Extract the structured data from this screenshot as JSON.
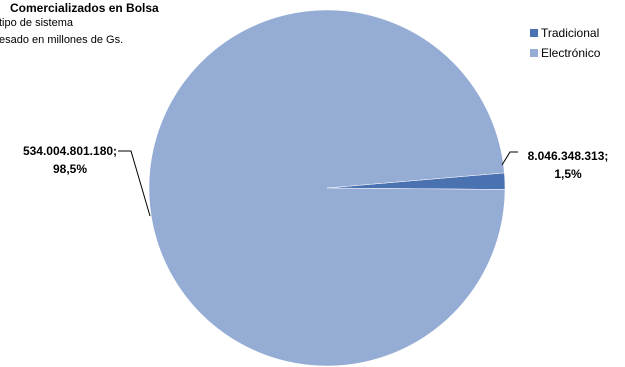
{
  "chart_data": {
    "type": "pie",
    "title": "Comercializados  en Bolsa",
    "subtitle_lines": [
      "tipo de sistema",
      "esado en millones de Gs."
    ],
    "series": [
      {
        "name": "Tradicional",
        "value": 8046348313,
        "value_label": "8.046.348.313;",
        "percent_label": "1,5%",
        "color": "#4a72b0"
      },
      {
        "name": "Electrónico",
        "value": 534004801180,
        "value_label": "534.004.801.180;",
        "percent_label": "98,5%",
        "color": "#95acd5"
      }
    ],
    "legend_position": "top-right"
  }
}
